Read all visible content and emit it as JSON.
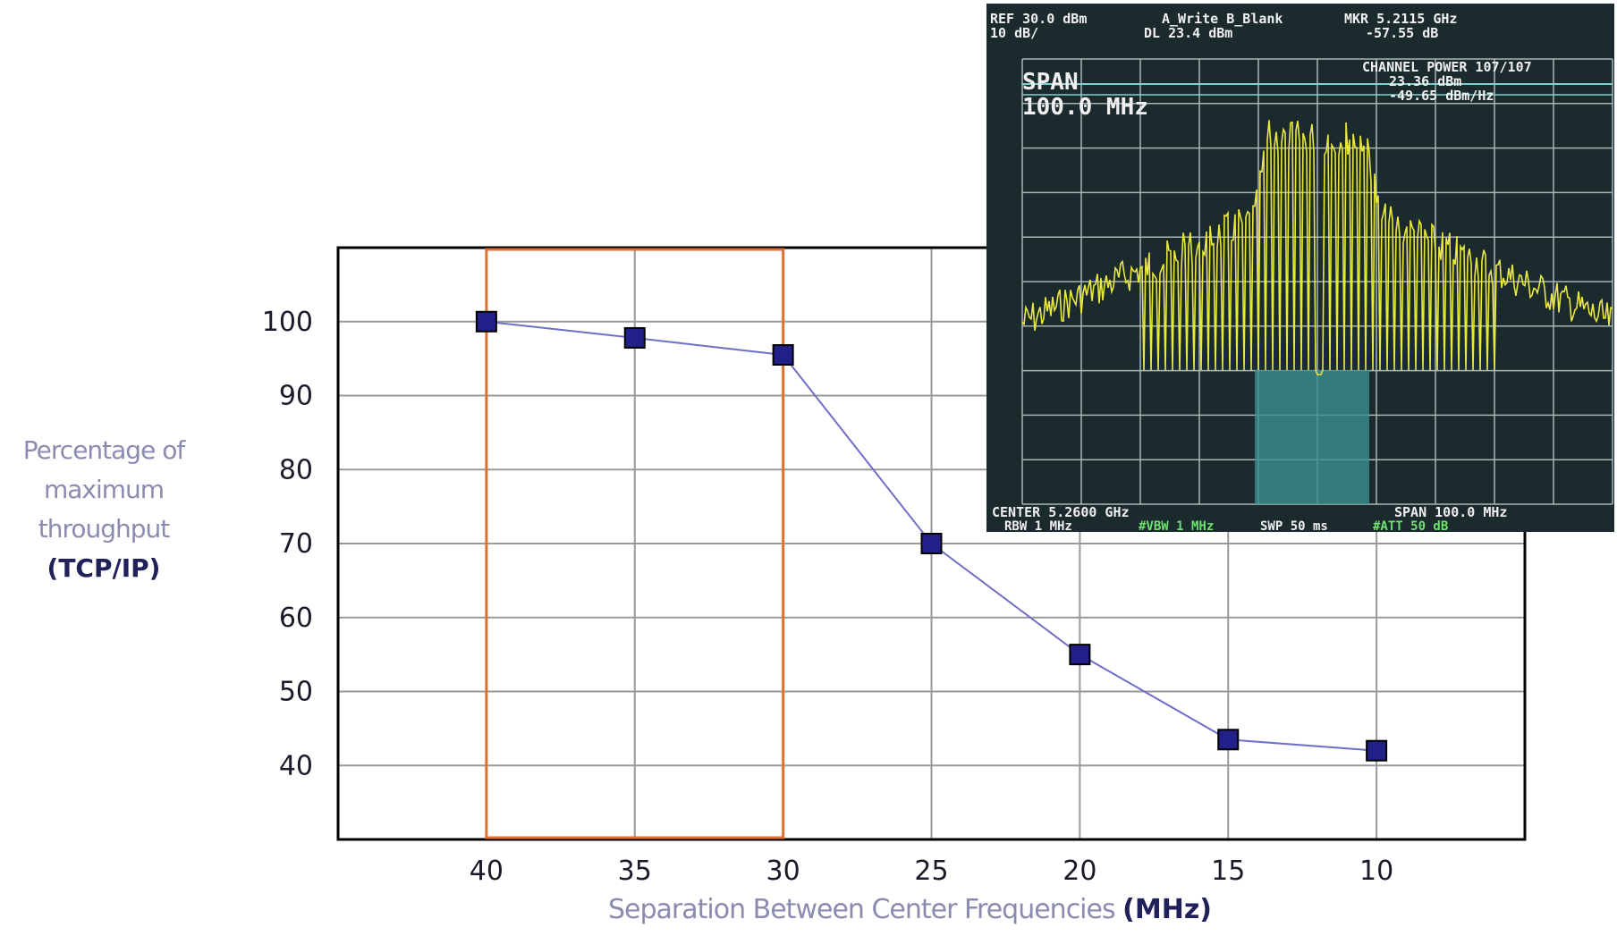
{
  "chart_data": {
    "type": "line",
    "x": [
      40,
      35,
      30,
      25,
      20,
      15,
      10
    ],
    "y": [
      100,
      97.8,
      95.5,
      70,
      55,
      43.5,
      42
    ],
    "xticks": [
      "40",
      "35",
      "30",
      "25",
      "20",
      "15",
      "10"
    ],
    "yticks": [
      "100",
      "90",
      "80",
      "70",
      "60",
      "50",
      "40"
    ],
    "xlim": [
      45,
      5
    ],
    "ylim": [
      30,
      110
    ],
    "xlabel": "Separation Between Center Frequencies",
    "xlabel_unit": "(MHz)",
    "ylabel_lines": [
      "Percentage of",
      "maximum",
      "throughput"
    ],
    "ylabel_unit": "(TCP/IP)",
    "highlight_x_range": [
      40,
      30
    ],
    "grid": true,
    "colors": {
      "line": "#6f6fc8",
      "marker": "#202088",
      "grid": "#999999",
      "highlight": "#e07030"
    }
  },
  "spectrum": {
    "header_left": [
      "REF 30.0 dBm",
      "10 dB/"
    ],
    "header_mid": [
      "A_Write  B_Blank",
      "DL 23.4 dBm"
    ],
    "header_right": [
      "MKR 5.2115 GHz",
      "-57.55 dB"
    ],
    "span_label": "SPAN",
    "span_value": "100.0 MHz",
    "channel_power": [
      "CHANNEL POWER  107/107",
      "23.36 dBm",
      "-49.65 dBm/Hz"
    ],
    "footer_left": [
      "CENTER 5.2600 GHz",
      "RBW 1 MHz"
    ],
    "footer_right": "SPAN 100.0 MHz",
    "footer_mid": [
      "#VBW 1 MHz",
      "SWP 50 ms",
      "#ATT 50 dB"
    ],
    "colors": {
      "screen": "#1b2a2c",
      "grid": "#aab6b6",
      "trace": "#e8e840",
      "text": "#f0f0f0",
      "band": "#3a9090"
    }
  }
}
